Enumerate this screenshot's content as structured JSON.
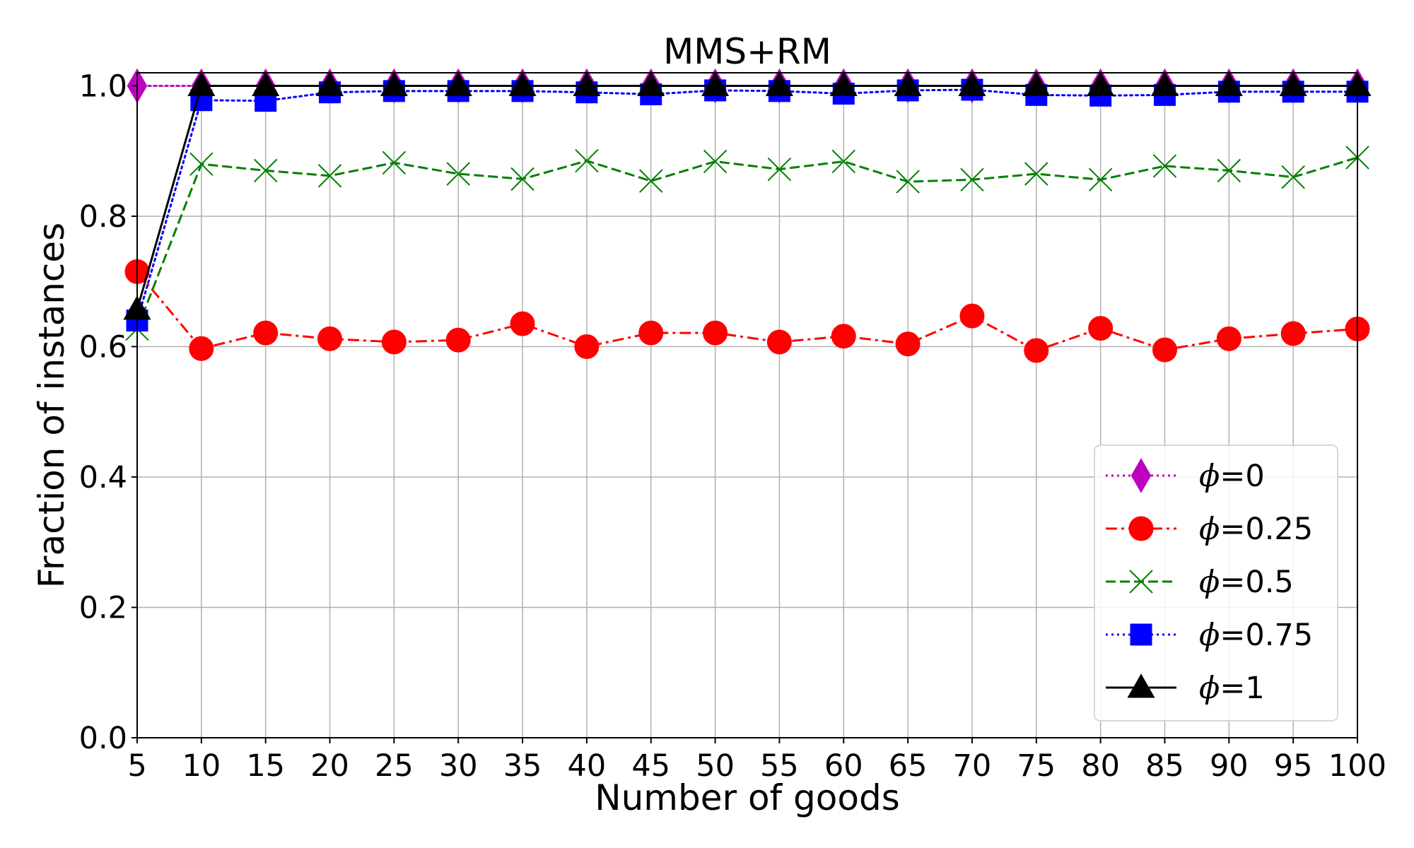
{
  "chart_data": {
    "type": "line",
    "title": "MMS+RM",
    "xlabel": "Number of goods",
    "ylabel": "Fraction of instances",
    "x": [
      5,
      10,
      15,
      20,
      25,
      30,
      35,
      40,
      45,
      50,
      55,
      60,
      65,
      70,
      75,
      80,
      85,
      90,
      95,
      100
    ],
    "xticks": [
      "5",
      "10",
      "15",
      "20",
      "25",
      "30",
      "35",
      "40",
      "45",
      "50",
      "55",
      "60",
      "65",
      "70",
      "75",
      "80",
      "85",
      "90",
      "95",
      "100"
    ],
    "yticks": [
      "0.0",
      "0.2",
      "0.4",
      "0.6",
      "0.8",
      "1.0"
    ],
    "xlim": [
      5,
      100
    ],
    "ylim": [
      0,
      1.02
    ],
    "grid": true,
    "legend_position": "bottom-right",
    "series": [
      {
        "name": "ϕ=0",
        "symbol": "ϕ",
        "value_label": "=0",
        "color": "#bf00bf",
        "marker": "diamond",
        "linestyle": "dotted",
        "values": [
          1.0,
          1.0,
          1.0,
          1.0,
          1.0,
          1.0,
          1.0,
          1.0,
          1.0,
          1.0,
          1.0,
          1.0,
          1.0,
          1.0,
          1.0,
          1.0,
          1.0,
          1.0,
          1.0,
          1.0
        ]
      },
      {
        "name": "ϕ=0.25",
        "symbol": "ϕ",
        "value_label": "=0.25",
        "color": "#ff0000",
        "marker": "circle",
        "linestyle": "dashdot",
        "values": [
          0.715,
          0.597,
          0.621,
          0.612,
          0.607,
          0.61,
          0.635,
          0.6,
          0.621,
          0.621,
          0.607,
          0.616,
          0.604,
          0.647,
          0.594,
          0.628,
          0.595,
          0.612,
          0.62,
          0.627
        ]
      },
      {
        "name": "ϕ=0.5",
        "symbol": "ϕ",
        "value_label": "=0.5",
        "color": "#008000",
        "marker": "x",
        "linestyle": "dashed",
        "values": [
          0.627,
          0.88,
          0.87,
          0.862,
          0.882,
          0.865,
          0.857,
          0.885,
          0.854,
          0.884,
          0.872,
          0.884,
          0.853,
          0.856,
          0.865,
          0.856,
          0.877,
          0.87,
          0.86,
          0.89
        ]
      },
      {
        "name": "ϕ=0.75",
        "symbol": "ϕ",
        "value_label": "=0.75",
        "color": "#0000ff",
        "marker": "square",
        "linestyle": "dotted",
        "values": [
          0.64,
          0.978,
          0.977,
          0.99,
          0.992,
          0.992,
          0.992,
          0.99,
          0.987,
          0.993,
          0.992,
          0.988,
          0.993,
          0.994,
          0.986,
          0.985,
          0.986,
          0.991,
          0.991,
          0.991
        ]
      },
      {
        "name": "ϕ=1",
        "symbol": "ϕ",
        "value_label": "=1",
        "color": "#000000",
        "marker": "triangle",
        "linestyle": "solid",
        "values": [
          0.657,
          1.0,
          1.0,
          1.0,
          1.0,
          1.0,
          1.0,
          1.0,
          1.0,
          1.0,
          1.0,
          1.0,
          1.0,
          1.0,
          1.0,
          1.0,
          1.0,
          1.0,
          1.0,
          1.0
        ]
      }
    ]
  }
}
